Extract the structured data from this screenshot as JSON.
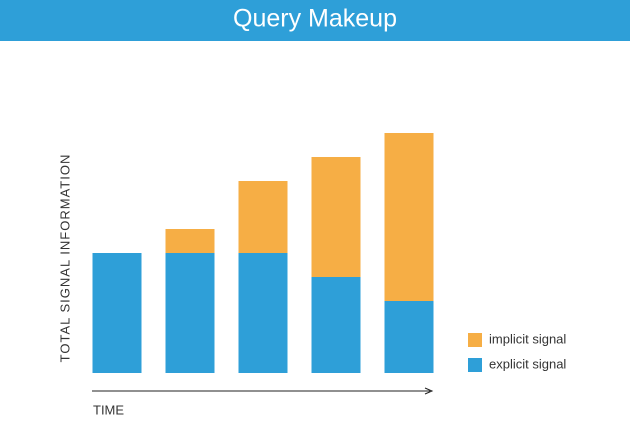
{
  "chart_data": {
    "type": "bar",
    "stacked": true,
    "title": "Query Makeup",
    "ylabel": "TOTAL SIGNAL INFORMATION",
    "xlabel": "TIME",
    "categories": [
      null,
      null,
      null,
      null,
      null
    ],
    "series": [
      {
        "name": "explicit signal",
        "color": "#2e9fd8",
        "values": [
          5,
          5,
          5,
          4,
          3
        ]
      },
      {
        "name": "implicit signal",
        "color": "#f6ae45",
        "values": [
          0,
          1,
          3,
          5,
          7
        ]
      }
    ],
    "ylim": [
      0,
      10
    ]
  }
}
